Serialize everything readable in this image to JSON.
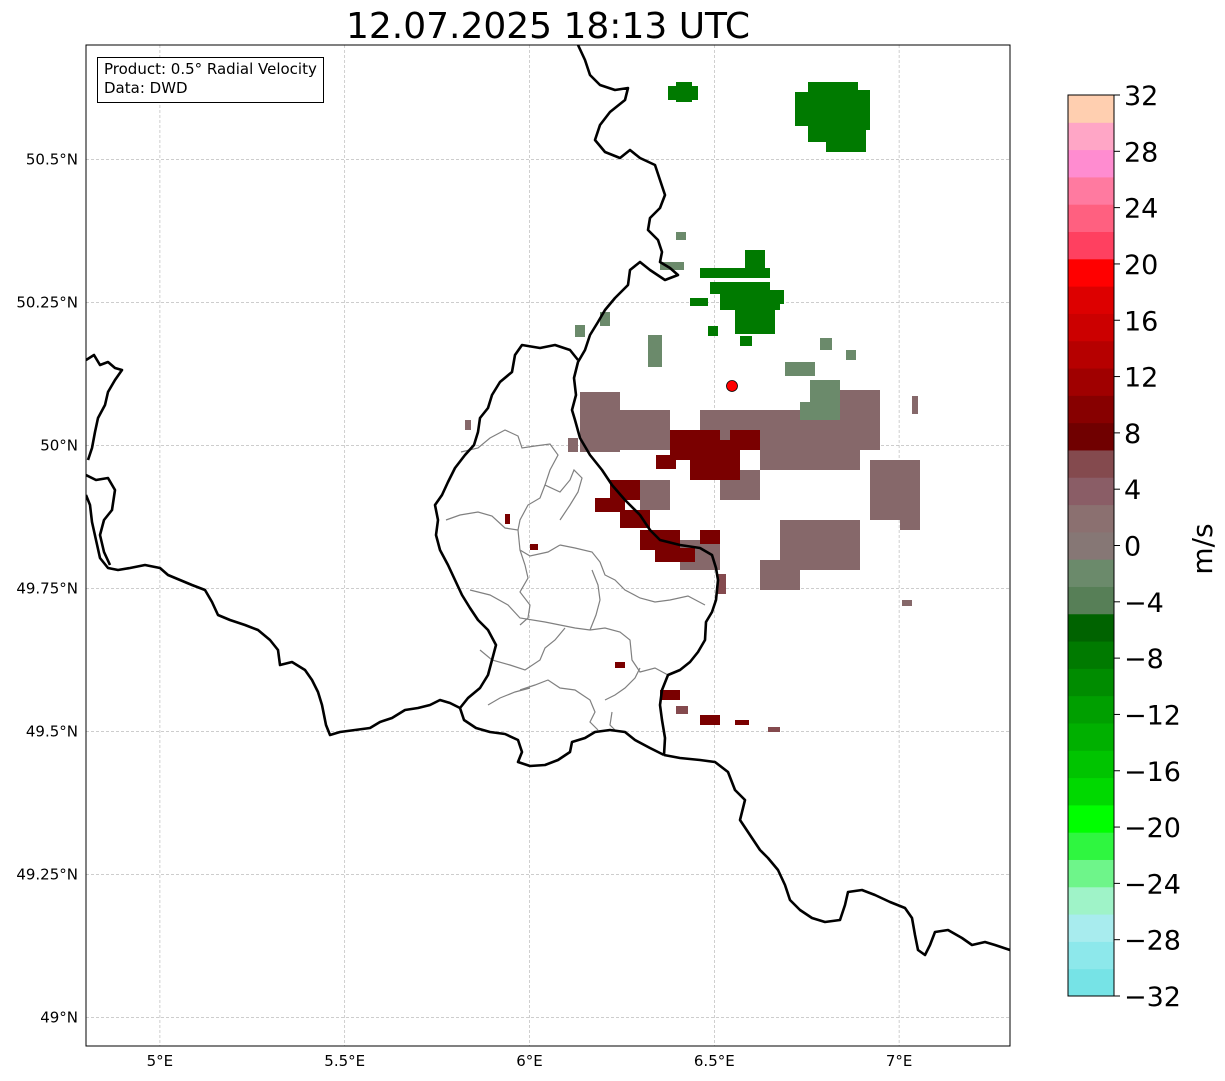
{
  "title": "12.07.2025 18:13 UTC",
  "info": {
    "product": "Product: 0.5° Radial Velocity",
    "source": "Data: DWD"
  },
  "map": {
    "lon_range": [
      4.8,
      7.3
    ],
    "lat_range": [
      48.95,
      50.7
    ],
    "lon_ticks": [
      {
        "value": 5.0,
        "label": "5°E"
      },
      {
        "value": 5.5,
        "label": "5.5°E"
      },
      {
        "value": 6.0,
        "label": "6°E"
      },
      {
        "value": 6.5,
        "label": "6.5°E"
      },
      {
        "value": 7.0,
        "label": "7°E"
      }
    ],
    "lat_ticks": [
      {
        "value": 49.0,
        "label": "49°N"
      },
      {
        "value": 49.25,
        "label": "49.25°N"
      },
      {
        "value": 49.5,
        "label": "49.5°N"
      },
      {
        "value": 49.75,
        "label": "49.75°N"
      },
      {
        "value": 50.0,
        "label": "50°N"
      },
      {
        "value": 50.25,
        "label": "50.25°N"
      },
      {
        "value": 50.5,
        "label": "50.5°N"
      }
    ],
    "grid": true,
    "radar_site": {
      "lon": 6.55,
      "lat": 50.11,
      "color": "#ff0000"
    }
  },
  "colorbar": {
    "label": "m/s",
    "min": -32,
    "max": 32,
    "tick_labels": [
      "−32",
      "−28",
      "−24",
      "−20",
      "−16",
      "−12",
      "−8",
      "−4",
      "0",
      "4",
      "8",
      "12",
      "16",
      "20",
      "24",
      "28",
      "32"
    ],
    "colors": [
      "#76e3e6",
      "#8de8eb",
      "#a8ecee",
      "#9ff3c8",
      "#6ef58a",
      "#2ff640",
      "#00ff00",
      "#00d900",
      "#00c400",
      "#00b000",
      "#009f00",
      "#008c00",
      "#007a00",
      "#006300",
      "#577f57",
      "#6b8a6b",
      "#867775",
      "#8b7070",
      "#8a5d66",
      "#844a4e",
      "#700000",
      "#870000",
      "#a00000",
      "#b60000",
      "#cc0000",
      "#dd0000",
      "#ff0000",
      "#ff4060",
      "#ff6080",
      "#ff7aa0",
      "#ff8cd0",
      "#ffa6c6",
      "#ffcfb0"
    ]
  }
}
